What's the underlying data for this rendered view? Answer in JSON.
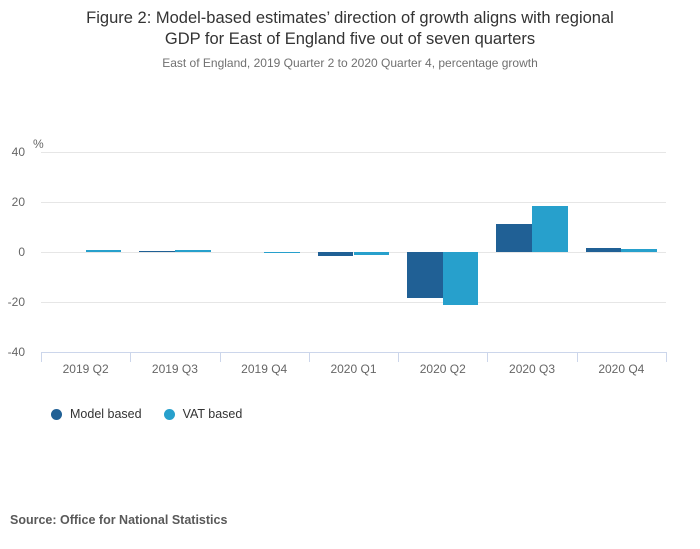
{
  "header": {
    "title_line1": "Figure 2: Model-based estimates’ direction of growth aligns with regional",
    "title_line2": "GDP for East of England five out of seven quarters"
  },
  "chart_data": {
    "type": "bar",
    "title": "Figure 2: Model-based estimates’ direction of growth aligns with regional GDP for East of England five out of seven quarters",
    "subtitle": "East of England, 2019 Quarter 2 to 2020 Quarter 4, percentage growth",
    "ylabel": "%",
    "categories": [
      "2019 Q2",
      "2019 Q3",
      "2019 Q4",
      "2020 Q1",
      "2020 Q2",
      "2020 Q3",
      "2020 Q4"
    ],
    "series": [
      {
        "name": "Model based",
        "color": "#206095",
        "values": [
          0,
          0.3,
          0,
          -1.4,
          -18.5,
          11.3,
          1.7
        ]
      },
      {
        "name": "VAT based",
        "color": "#27A0CC",
        "values": [
          0.7,
          0.9,
          -0.5,
          -1.1,
          -21.2,
          18.4,
          1.1
        ]
      }
    ],
    "yticks": [
      40,
      20,
      0,
      -20,
      -40
    ],
    "ylim": [
      -40,
      40
    ],
    "grid": true,
    "legend_position": "bottom-left"
  },
  "colors": {
    "model_based": "#206095",
    "vat_based": "#27A0CC",
    "gridline": "#e6e6e6",
    "axis": "#ccd6eb",
    "tick_label": "#666666"
  },
  "source": "Source: Office for National Statistics"
}
